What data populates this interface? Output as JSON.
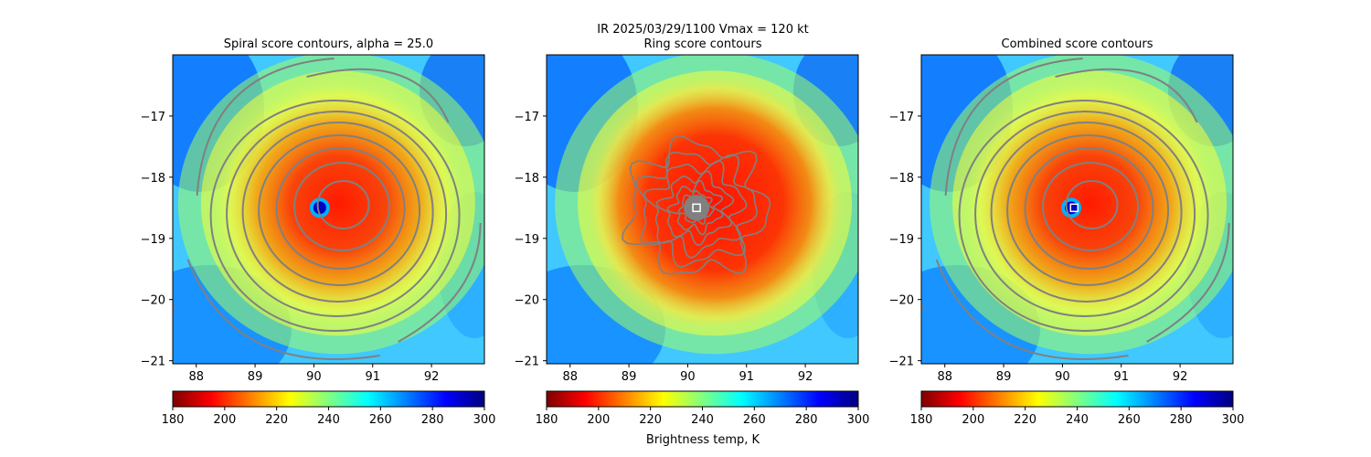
{
  "suptitle": {
    "line1": "IR  2025/03/29/1100    Vmax = 120 kt",
    "line2": "Ring score contours"
  },
  "colorbar": {
    "label": "Brightness temp, K",
    "ticks": [
      180,
      200,
      220,
      240,
      260,
      280,
      300
    ],
    "range": [
      180,
      300
    ],
    "colormap": "jet_r",
    "stops": [
      "#800000",
      "#ff0000",
      "#ff8000",
      "#ffff00",
      "#80ff80",
      "#00ffff",
      "#0080ff",
      "#0000ff",
      "#000080"
    ]
  },
  "contour_color": "#808080",
  "chart_data": [
    {
      "type": "heatmap",
      "title": "Spiral score contours, alpha = 25.0",
      "xlim": [
        87.6,
        92.9
      ],
      "ylim": [
        -21.05,
        -16.0
      ],
      "xticks": [
        88,
        89,
        90,
        91,
        92
      ],
      "yticks": [
        -17,
        -18,
        -19,
        -20,
        -21
      ],
      "storm_center": [
        90.1,
        -18.5
      ],
      "warm_eye": [
        90.1,
        -18.5
      ],
      "contours": "spiral"
    },
    {
      "type": "heatmap",
      "title": "",
      "xlim": [
        87.6,
        92.9
      ],
      "ylim": [
        -21.05,
        -16.0
      ],
      "xticks": [
        88,
        89,
        90,
        91,
        92
      ],
      "yticks": [
        -17,
        -18,
        -19,
        -20,
        -21
      ],
      "storm_center": [
        90.15,
        -18.5
      ],
      "warm_eye": null,
      "contours": "ring",
      "marker": [
        90.15,
        -18.5
      ]
    },
    {
      "type": "heatmap",
      "title": "Combined score contours",
      "xlim": [
        87.6,
        92.9
      ],
      "ylim": [
        -21.05,
        -16.0
      ],
      "xticks": [
        88,
        89,
        90,
        91,
        92
      ],
      "yticks": [
        -17,
        -18,
        -19,
        -20,
        -21
      ],
      "storm_center": [
        90.15,
        -18.5
      ],
      "warm_eye": [
        90.15,
        -18.5
      ],
      "contours": "combined",
      "marker": [
        90.2,
        -18.5
      ]
    }
  ]
}
